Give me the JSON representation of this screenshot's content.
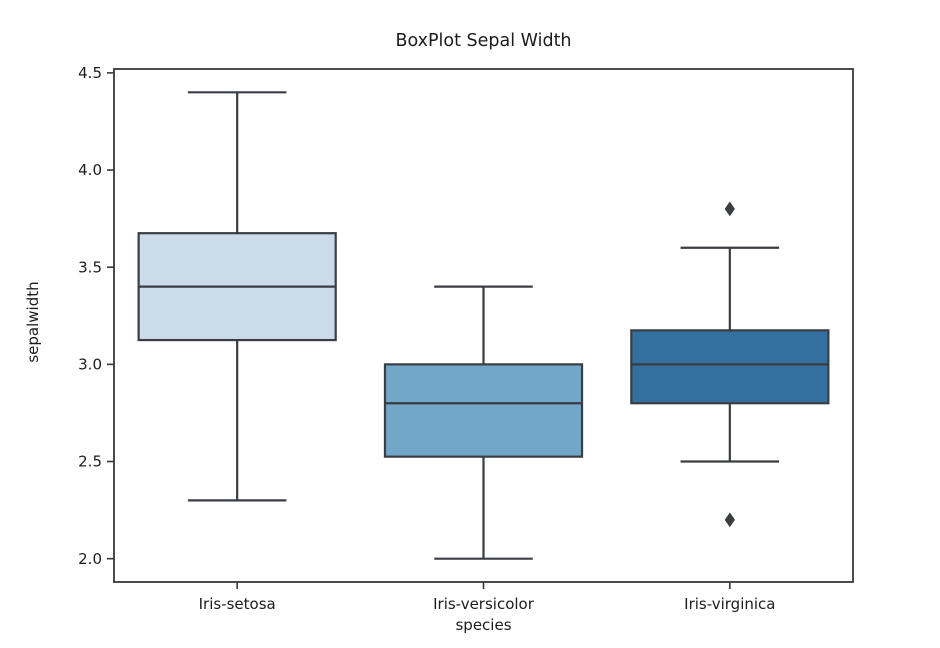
{
  "figure": {
    "background": "#ffffff"
  },
  "chart_data": {
    "type": "boxplot",
    "title": "BoxPlot Sepal Width",
    "xlabel": "species",
    "ylabel": "sepalwidth",
    "categories": [
      "Iris-setosa",
      "Iris-versicolor",
      "Iris-virginica"
    ],
    "series": [
      {
        "name": "Iris-setosa",
        "whisker_low": 2.3,
        "q1": 3.125,
        "median": 3.4,
        "q3": 3.675,
        "whisker_high": 4.4,
        "outliers": [],
        "fill": "#ccdbea"
      },
      {
        "name": "Iris-versicolor",
        "whisker_low": 2.0,
        "q1": 2.525,
        "median": 2.8,
        "q3": 3.0,
        "whisker_high": 3.4,
        "outliers": [],
        "fill": "#73a7ca"
      },
      {
        "name": "Iris-virginica",
        "whisker_low": 2.5,
        "q1": 2.8,
        "median": 3.0,
        "q3": 3.175,
        "whisker_high": 3.6,
        "outliers": [
          3.8,
          2.2
        ],
        "fill": "#33709f"
      }
    ],
    "yticks": [
      2.0,
      2.5,
      3.0,
      3.5,
      4.0,
      4.5
    ],
    "ytick_labels": [
      "2.0",
      "2.5",
      "3.0",
      "3.5",
      "4.0",
      "4.5"
    ],
    "ylim": [
      1.88,
      4.52
    ],
    "grid": false,
    "legend": null,
    "line_color": "#3a3d41",
    "spine_color": "#36393c",
    "text_color": "#1c1c1c",
    "box_width_frac": 0.8,
    "cap_width_frac": 0.4
  }
}
